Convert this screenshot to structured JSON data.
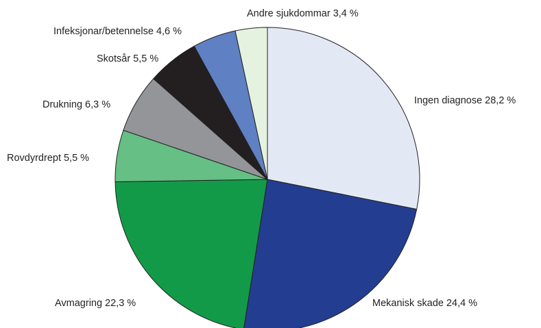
{
  "chart_data": {
    "type": "pie",
    "categories": [
      "Ingen diagnose",
      "Mekanisk skade",
      "Avmagring",
      "Rovdyrdrept",
      "Drukning",
      "Skotsår",
      "Infeksjonar/betennelse",
      "Andre sjukdommar"
    ],
    "values": [
      28.2,
      24.4,
      22.3,
      5.5,
      6.3,
      5.5,
      4.6,
      3.4
    ],
    "value_labels": [
      "28,2 %",
      "24,4 %",
      "22,3 %",
      "5,5 %",
      "6,3 %",
      "5,5 %",
      "4,6 %",
      "3,4 %"
    ],
    "colors": [
      "#e3e9f4",
      "#233d91",
      "#139a48",
      "#66bf84",
      "#939598",
      "#231f20",
      "#5f80c2",
      "#e5f2e0"
    ]
  }
}
